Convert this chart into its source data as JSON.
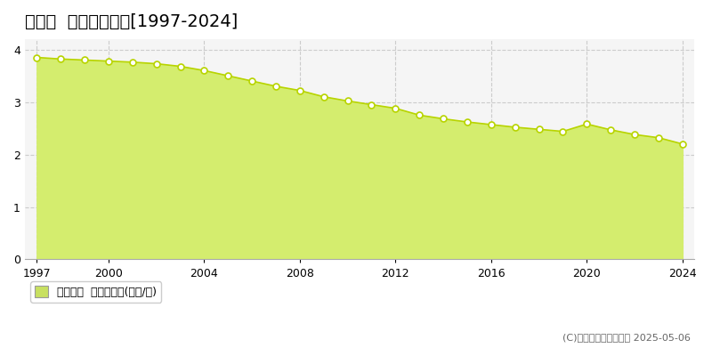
{
  "title": "寿都町  基準地価推移[1997-2024]",
  "years": [
    1997,
    1998,
    1999,
    2000,
    2001,
    2002,
    2003,
    2004,
    2005,
    2006,
    2007,
    2008,
    2009,
    2010,
    2011,
    2012,
    2013,
    2014,
    2015,
    2016,
    2017,
    2018,
    2019,
    2020,
    2021,
    2022,
    2023,
    2024
  ],
  "values": [
    3.85,
    3.82,
    3.8,
    3.78,
    3.76,
    3.73,
    3.68,
    3.6,
    3.5,
    3.4,
    3.3,
    3.22,
    3.1,
    3.02,
    2.95,
    2.88,
    2.75,
    2.68,
    2.62,
    2.57,
    2.52,
    2.48,
    2.44,
    2.58,
    2.47,
    2.38,
    2.32,
    2.2
  ],
  "fill_color": "#d4ed6e",
  "line_color": "#b8d400",
  "marker_face": "#ffffff",
  "marker_edge": "#b8d400",
  "bg_color": "#ffffff",
  "plot_bg_color": "#f5f5f5",
  "grid_color": "#cccccc",
  "ylim": [
    0,
    4.2
  ],
  "yticks": [
    0,
    1,
    2,
    3,
    4
  ],
  "xtick_major": [
    1997,
    2000,
    2004,
    2008,
    2012,
    2016,
    2020,
    2024
  ],
  "xlabel": "",
  "ylabel": "",
  "legend_label": "基準地価  平均坪単価(万円/坪)",
  "legend_color": "#c8e060",
  "copyright_text": "(C)土地価格ドットコム 2025-05-06",
  "title_fontsize": 14,
  "tick_fontsize": 9,
  "legend_fontsize": 9,
  "copyright_fontsize": 8
}
